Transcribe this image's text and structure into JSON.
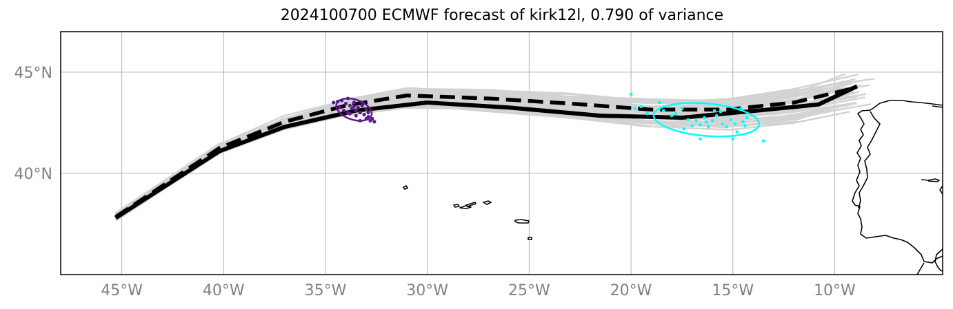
{
  "title": "2024100700 ECMWF forecast of kirk12l, 0.790 of variance",
  "map": {
    "lon_range": [
      -48,
      -4.7
    ],
    "lat_range": [
      35,
      47
    ],
    "lon_ticks": [
      {
        "value": -45,
        "label": "45°W"
      },
      {
        "value": -40,
        "label": "40°W"
      },
      {
        "value": -35,
        "label": "35°W"
      },
      {
        "value": -30,
        "label": "30°W"
      },
      {
        "value": -25,
        "label": "25°W"
      },
      {
        "value": -20,
        "label": "20°W"
      },
      {
        "value": -15,
        "label": "15°W"
      },
      {
        "value": -10,
        "label": "10°W"
      }
    ],
    "lat_ticks": [
      {
        "value": 45,
        "label": "45°N"
      },
      {
        "value": 40,
        "label": "40°N"
      }
    ],
    "grid": true
  },
  "colors": {
    "ensemble": "#d3d3d3",
    "mean_track": "#000000",
    "early_cluster": "#5b1a8e",
    "late_cluster": "#00ffff",
    "tick_labels": "#808080",
    "grid": "#b0b0b0"
  },
  "chart_data": {
    "type": "map",
    "tracks": {
      "solid_track": [
        [
          -45.3,
          37.8
        ],
        [
          -40.2,
          41.1
        ],
        [
          -37,
          42.3
        ],
        [
          -33.5,
          43.1
        ],
        [
          -30,
          43.5
        ],
        [
          -26,
          43.25
        ],
        [
          -21.5,
          42.85
        ],
        [
          -17.5,
          42.75
        ],
        [
          -13.8,
          43.1
        ],
        [
          -10.8,
          43.4
        ],
        [
          -8.9,
          44.3
        ]
      ],
      "dashed_track": [
        [
          -45.3,
          37.85
        ],
        [
          -40.2,
          41.25
        ],
        [
          -37,
          42.55
        ],
        [
          -34,
          43.35
        ],
        [
          -31,
          43.85
        ],
        [
          -27,
          43.7
        ],
        [
          -23,
          43.45
        ],
        [
          -19,
          43.15
        ],
        [
          -15.3,
          43.15
        ],
        [
          -12,
          43.5
        ],
        [
          -9.1,
          44.2
        ]
      ]
    },
    "clusters": [
      {
        "center": [
          -33.6,
          43.15
        ],
        "semi_axes_deg": [
          0.9,
          0.5
        ],
        "rotation_deg": 18,
        "color": "#5b1a8e"
      },
      {
        "center": [
          -16.3,
          42.65
        ],
        "semi_axes_deg": [
          2.6,
          0.8
        ],
        "rotation_deg": 5,
        "color": "#00ffff"
      }
    ],
    "early_points": [
      [
        -34.6,
        43.5
      ],
      [
        -34.4,
        43.55
      ],
      [
        -34.2,
        43.6
      ],
      [
        -34,
        43.45
      ],
      [
        -33.9,
        43.7
      ],
      [
        -33.8,
        43.35
      ],
      [
        -33.7,
        43.2
      ],
      [
        -33.6,
        43.5
      ],
      [
        -33.5,
        43.1
      ],
      [
        -33.4,
        43.25
      ],
      [
        -33.3,
        43.0
      ],
      [
        -33.2,
        43.35
      ],
      [
        -33.1,
        42.9
      ],
      [
        -33.0,
        43.15
      ],
      [
        -32.9,
        42.8
      ],
      [
        -32.8,
        42.6
      ],
      [
        -32.7,
        42.7
      ],
      [
        -32.6,
        42.55
      ],
      [
        -33.3,
        42.6
      ],
      [
        -33.0,
        42.7
      ],
      [
        -34.1,
        43.1
      ],
      [
        -33.8,
        42.95
      ],
      [
        -33.5,
        42.85
      ],
      [
        -33.6,
        43.3
      ],
      [
        -34.3,
        43.25
      ],
      [
        -32.9,
        43.0
      ],
      [
        -33.2,
        43.5
      ],
      [
        -33.9,
        43.0
      ]
    ],
    "late_points": [
      [
        -20,
        43.9
      ],
      [
        -19.8,
        43.2
      ],
      [
        -19.5,
        43.3
      ],
      [
        -19.2,
        42.95
      ],
      [
        -18.6,
        43.5
      ],
      [
        -18.4,
        43.1
      ],
      [
        -18.0,
        42.85
      ],
      [
        -17.8,
        42.95
      ],
      [
        -17.5,
        43.2
      ],
      [
        -17.2,
        42.65
      ],
      [
        -17.0,
        42.35
      ],
      [
        -16.8,
        42.6
      ],
      [
        -16.6,
        42.4
      ],
      [
        -16.4,
        42.75
      ],
      [
        -16.3,
        42.55
      ],
      [
        -16.2,
        42.3
      ],
      [
        -16.0,
        42.6
      ],
      [
        -15.8,
        42.85
      ],
      [
        -15.6,
        43.05
      ],
      [
        -15.5,
        42.45
      ],
      [
        -15.3,
        42.3
      ],
      [
        -15.1,
        42.65
      ],
      [
        -14.9,
        42.45
      ],
      [
        -14.8,
        42.05
      ],
      [
        -14.6,
        43.2
      ],
      [
        -14.5,
        42.55
      ],
      [
        -14.4,
        42.35
      ],
      [
        -14.3,
        42.75
      ],
      [
        -15.0,
        41.7
      ],
      [
        -16.6,
        41.7
      ],
      [
        -13.5,
        41.6
      ],
      [
        -17.4,
        42.2
      ],
      [
        -15.9,
        43.1
      ]
    ]
  }
}
